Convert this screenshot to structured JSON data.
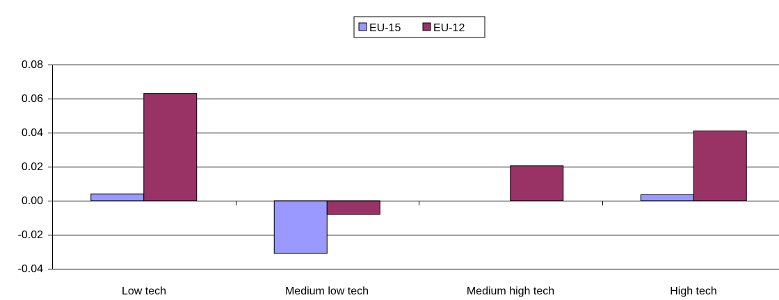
{
  "chart_data": {
    "type": "bar",
    "categories": [
      "Low tech",
      "Medium low tech",
      "Medium high tech",
      "High tech"
    ],
    "series": [
      {
        "name": "EU-15",
        "color": "#9999ff",
        "values": [
          0.004,
          -0.031,
          0.0,
          0.0035
        ]
      },
      {
        "name": "EU-12",
        "color": "#993366",
        "values": [
          0.063,
          -0.008,
          0.0205,
          0.041
        ]
      }
    ],
    "yticks": [
      "0.08",
      "0.06",
      "0.04",
      "0.02",
      "0.00",
      "-0.02",
      "-0.04"
    ],
    "ylim": [
      -0.04,
      0.08
    ],
    "grid": true,
    "legend_position": "top-center"
  }
}
